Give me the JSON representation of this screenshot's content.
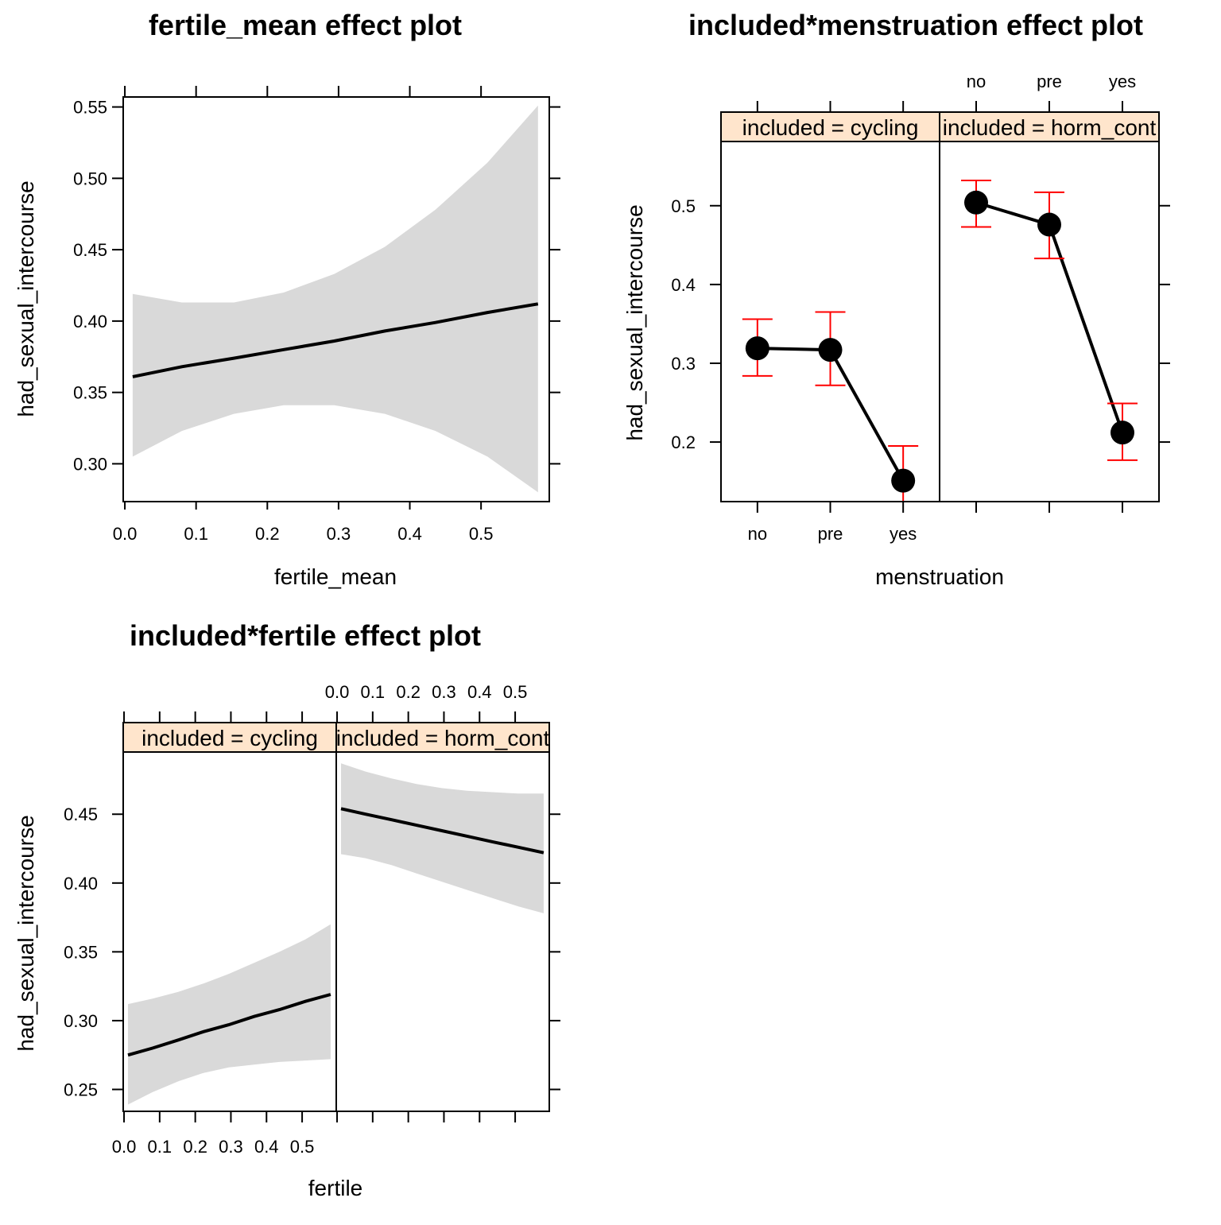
{
  "chart_data": [
    {
      "type": "line",
      "title": "fertile_mean effect plot",
      "xlabel": "fertile_mean",
      "ylabel": "had_sexual_intercourse",
      "xlim": [
        -0.0023,
        0.5958
      ],
      "ylim": [
        0.2735,
        0.557
      ],
      "x_ticks": [
        0.0,
        0.1,
        0.2,
        0.3,
        0.4,
        0.5
      ],
      "y_ticks": [
        0.3,
        0.35,
        0.4,
        0.45,
        0.5,
        0.55
      ],
      "x_tick_labels": [
        "0.0",
        "0.1",
        "0.2",
        "0.3",
        "0.4",
        "0.5"
      ],
      "y_tick_labels": [
        "0.30",
        "0.35",
        "0.40",
        "0.45",
        "0.50",
        "0.55"
      ],
      "band_color": "#d9d9d9",
      "line_color": "#000000",
      "series": [
        {
          "x": [
            0.011,
            0.08,
            0.153,
            0.223,
            0.294,
            0.365,
            0.436,
            0.509,
            0.58
          ],
          "fit": [
            0.361,
            0.368,
            0.374,
            0.38,
            0.386,
            0.393,
            0.399,
            0.406,
            0.412
          ],
          "lower": [
            0.305,
            0.323,
            0.335,
            0.341,
            0.341,
            0.335,
            0.323,
            0.305,
            0.28
          ],
          "upper": [
            0.419,
            0.413,
            0.413,
            0.42,
            0.433,
            0.452,
            0.478,
            0.511,
            0.551
          ]
        }
      ]
    },
    {
      "type": "line",
      "title": "included*menstruation effect plot",
      "xlabel": "menstruation",
      "ylabel": "had_sexual_intercourse",
      "categories": [
        "no",
        "pre",
        "yes"
      ],
      "ylim": [
        0.1244,
        0.5815
      ],
      "y_ticks": [
        0.2,
        0.3,
        0.4,
        0.5
      ],
      "y_tick_labels": [
        "0.2",
        "0.3",
        "0.4",
        "0.5"
      ],
      "strip_color": "#ffe5cc",
      "errorbar_color": "#ff0000",
      "panels": [
        {
          "strip": "included = cycling",
          "fit": [
            0.319,
            0.317,
            0.151
          ],
          "lower": [
            0.284,
            0.272,
            0.122
          ],
          "upper": [
            0.356,
            0.365,
            0.195
          ]
        },
        {
          "strip": "included = horm_cont",
          "fit": [
            0.504,
            0.476,
            0.212
          ],
          "lower": [
            0.473,
            0.433,
            0.177
          ],
          "upper": [
            0.532,
            0.517,
            0.249
          ]
        }
      ]
    },
    {
      "type": "line",
      "title": "included*fertile effect plot",
      "xlabel": "fertile",
      "ylabel": "had_sexual_intercourse",
      "xlim": [
        -0.0023,
        0.5958
      ],
      "ylim": [
        0.2341,
        0.4952
      ],
      "x_ticks": [
        0.0,
        0.1,
        0.2,
        0.3,
        0.4,
        0.5
      ],
      "x_tick_labels": [
        "0.0",
        "0.1",
        "0.2",
        "0.3",
        "0.4",
        "0.5"
      ],
      "y_ticks": [
        0.25,
        0.3,
        0.35,
        0.4,
        0.45
      ],
      "y_tick_labels": [
        "0.25",
        "0.30",
        "0.35",
        "0.40",
        "0.45"
      ],
      "strip_color": "#ffe5cc",
      "band_color": "#d9d9d9",
      "panels": [
        {
          "strip": "included = cycling",
          "x": [
            0.011,
            0.08,
            0.153,
            0.223,
            0.294,
            0.365,
            0.436,
            0.509,
            0.58
          ],
          "fit": [
            0.275,
            0.28,
            0.286,
            0.292,
            0.297,
            0.303,
            0.308,
            0.314,
            0.319
          ],
          "lower": [
            0.239,
            0.248,
            0.256,
            0.262,
            0.266,
            0.268,
            0.27,
            0.271,
            0.272
          ],
          "upper": [
            0.312,
            0.316,
            0.321,
            0.327,
            0.334,
            0.342,
            0.35,
            0.359,
            0.37
          ]
        },
        {
          "strip": "included = horm_cont",
          "x": [
            0.011,
            0.08,
            0.153,
            0.223,
            0.294,
            0.365,
            0.436,
            0.509,
            0.58
          ],
          "fit": [
            0.454,
            0.45,
            0.446,
            0.442,
            0.438,
            0.434,
            0.43,
            0.426,
            0.422
          ],
          "lower": [
            0.421,
            0.418,
            0.413,
            0.407,
            0.401,
            0.395,
            0.389,
            0.383,
            0.378
          ],
          "upper": [
            0.487,
            0.481,
            0.476,
            0.472,
            0.469,
            0.467,
            0.466,
            0.465,
            0.465
          ]
        }
      ]
    }
  ]
}
